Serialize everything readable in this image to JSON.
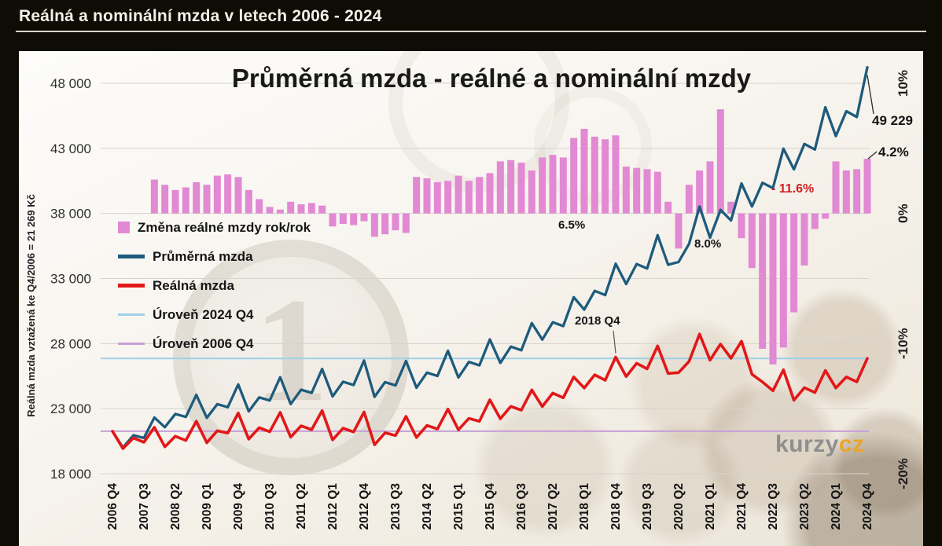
{
  "page": {
    "header_title": "Reálná a nominální mzda v letech 2006 - 2024",
    "watermark": {
      "part1": "kurzy",
      "part2": "cz"
    }
  },
  "chart_data": {
    "type": "combo_bar_line",
    "title": "Průměrná mzda - reálné a nominální mzdy",
    "ylabel_left": "Reálná mzda vztažená ke Q4/2006 = 21 269 Kč",
    "x_unit": "quarter",
    "x_range": [
      "2006 Q4",
      "2024 Q4"
    ],
    "n_points": 73,
    "x_tick_every": 3,
    "x_tick_labels": [
      "2006 Q4",
      "2007 Q3",
      "2008 Q2",
      "2009 Q1",
      "2009 Q4",
      "2010 Q3",
      "2011 Q2",
      "2012 Q1",
      "2012 Q4",
      "2013 Q3",
      "2014 Q2",
      "2015 Q1",
      "2015 Q4",
      "2016 Q3",
      "2017 Q2",
      "2018 Q1",
      "2018 Q4",
      "2019 Q3",
      "2020 Q2",
      "2021 Q1",
      "2021 Q4",
      "2022 Q3",
      "2023 Q2",
      "2024 Q1",
      "2024 Q4"
    ],
    "left_axis": {
      "min": 18000,
      "max": 48000,
      "ticks": [
        {
          "value": 48000,
          "label": "48 000"
        },
        {
          "value": 43000,
          "label": "43 000"
        },
        {
          "value": 38000,
          "label": "38 000"
        },
        {
          "value": 33000,
          "label": "33 000"
        },
        {
          "value": 28000,
          "label": "28 000"
        },
        {
          "value": 23000,
          "label": "23 000"
        },
        {
          "value": 18000,
          "label": "18 000"
        }
      ]
    },
    "right_axis": {
      "zero_at_left_value": 38000,
      "left_units_per_pct": 1000,
      "ticks": [
        {
          "pct": 10,
          "label": "10%"
        },
        {
          "pct": 0,
          "label": "0%"
        },
        {
          "pct": -10,
          "label": "-10%"
        },
        {
          "pct": -20,
          "label": "-20%"
        }
      ]
    },
    "legend": [
      {
        "label": "Změna reálné mzdy rok/rok",
        "marker": "bar",
        "color": "#e289d3"
      },
      {
        "label": "Průměrná mzda",
        "marker": "line",
        "color": "#1d5b7c"
      },
      {
        "label": "Reálná mzda",
        "marker": "line",
        "color": "#e21818"
      },
      {
        "label": "Úroveň 2024 Q4",
        "marker": "thin-line",
        "color": "#9fd0e8"
      },
      {
        "label": "Úroveň 2006 Q4",
        "marker": "thin-line",
        "color": "#c79fd8"
      }
    ],
    "series": {
      "nominal_wage": {
        "name": "Průměrná mzda",
        "color": "#1d5b7c",
        "values": [
          21269,
          20014,
          20957,
          20747,
          22319,
          21575,
          22592,
          22366,
          24060,
          22294,
          23344,
          23111,
          24861,
          22790,
          23864,
          23625,
          25415,
          23354,
          24455,
          24210,
          26045,
          23939,
          25067,
          24816,
          26696,
          23908,
          25035,
          24785,
          26662,
          24608,
          25768,
          25510,
          27443,
          25394,
          26591,
          26325,
          28319,
          26515,
          27764,
          27486,
          29569,
          28304,
          29638,
          29342,
          31564,
          30609,
          32051,
          31730,
          34134,
          32576,
          34111,
          33770,
          36328,
          34057,
          34271,
          35662,
          38525,
          36136,
          38275,
          37460,
          40298,
          38537,
          40353,
          39949,
          42976,
          41391,
          43341,
          42908,
          46158,
          43941,
          45854,
          45412,
          49229
        ]
      },
      "real_wage": {
        "name": "Reálná mzda",
        "color": "#e21818",
        "values": [
          21269,
          19934,
          20750,
          20420,
          21564,
          20070,
          20880,
          20557,
          22033,
          20378,
          21299,
          21125,
          22663,
          20662,
          21538,
          21226,
          22712,
          20815,
          21680,
          21387,
          22847,
          20602,
          21498,
          21210,
          22739,
          20227,
          21144,
          20933,
          22405,
          20784,
          21709,
          21437,
          22965,
          21375,
          22252,
          22029,
          23678,
          22225,
          23175,
          22886,
          24437,
          23162,
          24194,
          23836,
          25434,
          24585,
          25600,
          25183,
          26962,
          25470,
          26484,
          26057,
          27816,
          25703,
          25768,
          26633,
          28729,
          26728,
          27958,
          26872,
          28180,
          25640,
          25050,
          24374,
          25983,
          23652,
          24612,
          24242,
          25931,
          24589,
          25432,
          25062,
          26857
        ]
      },
      "real_wage_yoy_pct": {
        "name": "Změna reálné mzdy rok/rok",
        "color": "#e289d3",
        "values": [
          null,
          null,
          null,
          null,
          2.6,
          2.2,
          1.8,
          2.0,
          2.4,
          2.2,
          2.9,
          3.0,
          2.8,
          1.8,
          1.1,
          0.5,
          0.3,
          0.9,
          0.7,
          0.8,
          0.6,
          -1.0,
          -0.8,
          -0.9,
          -0.6,
          -1.8,
          -1.6,
          -1.3,
          -1.5,
          2.8,
          2.7,
          2.4,
          2.5,
          2.9,
          2.5,
          2.8,
          3.1,
          4.0,
          4.1,
          3.9,
          3.3,
          4.3,
          4.5,
          4.3,
          5.8,
          6.5,
          5.9,
          5.7,
          6.0,
          3.6,
          3.5,
          3.4,
          3.2,
          0.9,
          -2.7,
          2.2,
          3.3,
          4.0,
          8.0,
          0.9,
          -1.9,
          -4.2,
          -10.4,
          -11.6,
          -10.3,
          -7.6,
          -4.0,
          -1.2,
          -0.4,
          4.0,
          3.3,
          3.4,
          4.2
        ]
      },
      "level_2024q4": {
        "name": "Úroveň 2024 Q4",
        "color": "#9fd0e8",
        "value": 26857
      },
      "level_2006q4": {
        "name": "Úroveň 2006 Q4",
        "color": "#c79fd8",
        "value": 21269
      }
    },
    "annotations": {
      "peak_nominal": "49 229",
      "last_yoy": "4.2%",
      "yoy_2018": "6.5%",
      "yoy_2021": "8.0%",
      "yoy_2022_drop": "- 11.6%",
      "callout_2018q4": "2018 Q4"
    }
  }
}
